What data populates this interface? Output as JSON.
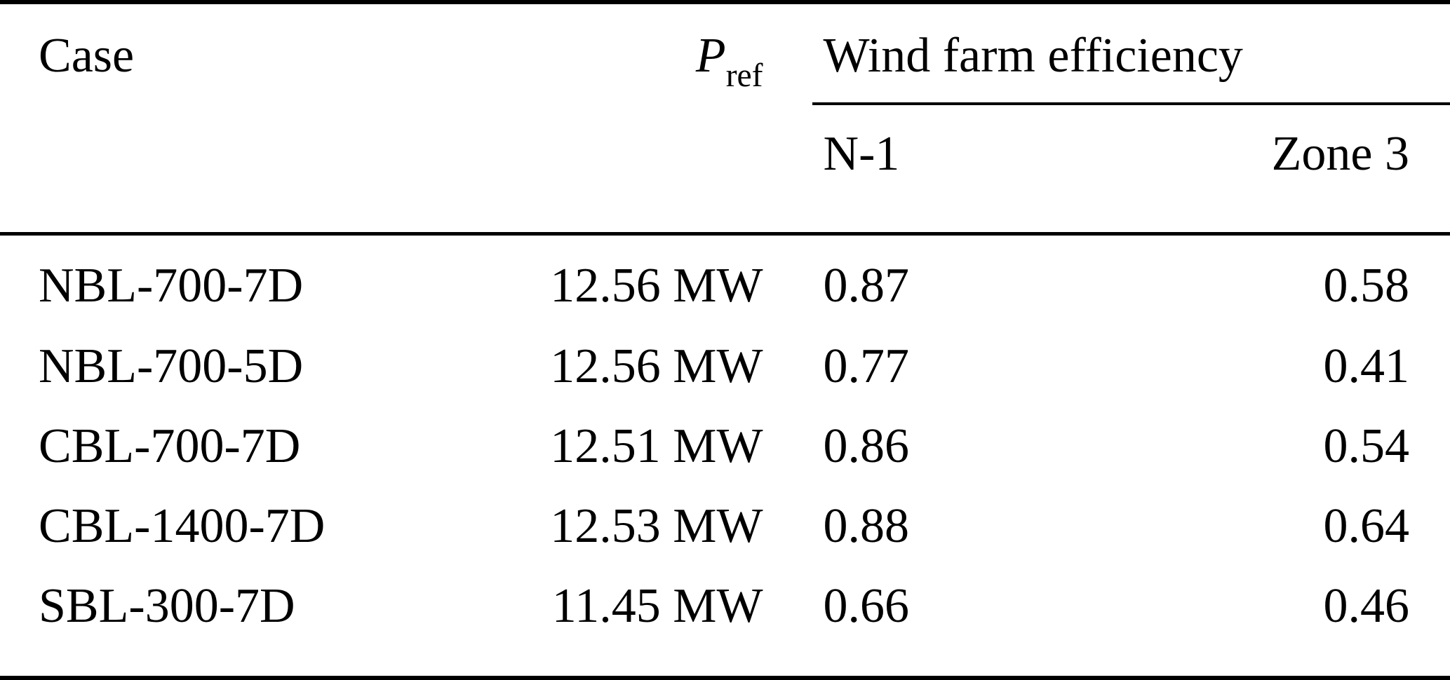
{
  "table": {
    "headers": {
      "case": "Case",
      "pref_symbol": "P",
      "pref_subscript": "ref",
      "efficiency_group": "Wind farm efficiency",
      "n1": "N-1",
      "zone3": "Zone 3"
    },
    "rows": [
      {
        "case": "NBL-700-7D",
        "pref": "12.56 MW",
        "n1": "0.87",
        "zone3": "0.58"
      },
      {
        "case": "NBL-700-5D",
        "pref": "12.56 MW",
        "n1": "0.77",
        "zone3": "0.41"
      },
      {
        "case": "CBL-700-7D",
        "pref": "12.51 MW",
        "n1": "0.86",
        "zone3": "0.54"
      },
      {
        "case": "CBL-1400-7D",
        "pref": "12.53 MW",
        "n1": "0.88",
        "zone3": "0.64"
      },
      {
        "case": "SBL-300-7D",
        "pref": "11.45 MW",
        "n1": "0.66",
        "zone3": "0.46"
      }
    ],
    "colors": {
      "text": "#000000",
      "background": "#ffffff",
      "rule": "#000000"
    }
  }
}
